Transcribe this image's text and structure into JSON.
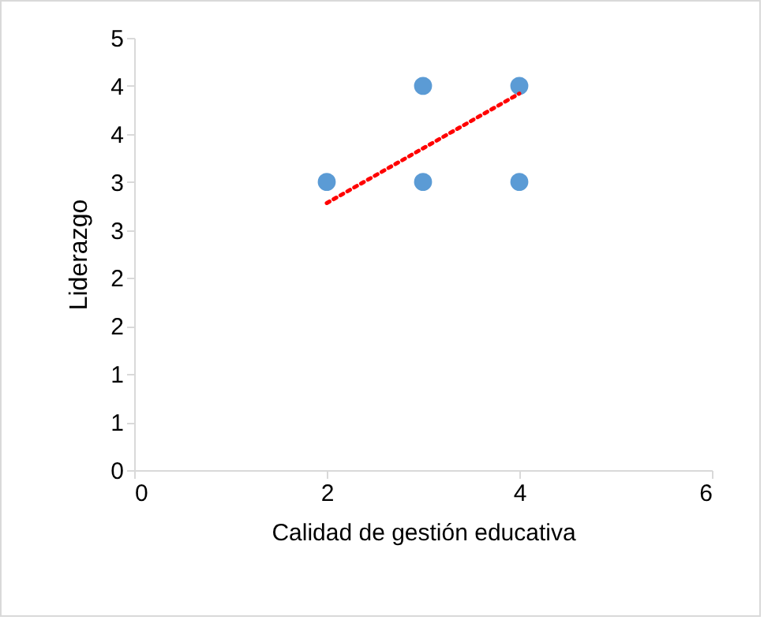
{
  "chart_data": {
    "type": "scatter",
    "xlabel": "Calidad de gestión educativa",
    "ylabel": "Liderazgo",
    "xlim": [
      0,
      6
    ],
    "xticks": [
      0,
      2,
      4,
      6
    ],
    "ylim": [
      0,
      4.5
    ],
    "yticks": [
      0,
      {
        "value": 0.5,
        "label": "1"
      },
      1,
      {
        "value": 1.5,
        "label": "2"
      },
      2,
      {
        "value": 2.5,
        "label": "3"
      },
      3,
      {
        "value": 3.5,
        "label": "4"
      },
      4,
      {
        "value": 4.5,
        "label": "5"
      }
    ],
    "grid": false,
    "series": [
      {
        "color": "#5b9bd5",
        "marker": "circle",
        "x": [
          2,
          3,
          3,
          4,
          4
        ],
        "values": [
          3,
          4,
          3,
          4,
          3
        ]
      },
      {
        "type": "line",
        "color": "#ff0000",
        "marker": "none",
        "line_style": "dotted",
        "x": [
          2,
          4
        ],
        "values": [
          2.78,
          3.92
        ]
      }
    ]
  }
}
